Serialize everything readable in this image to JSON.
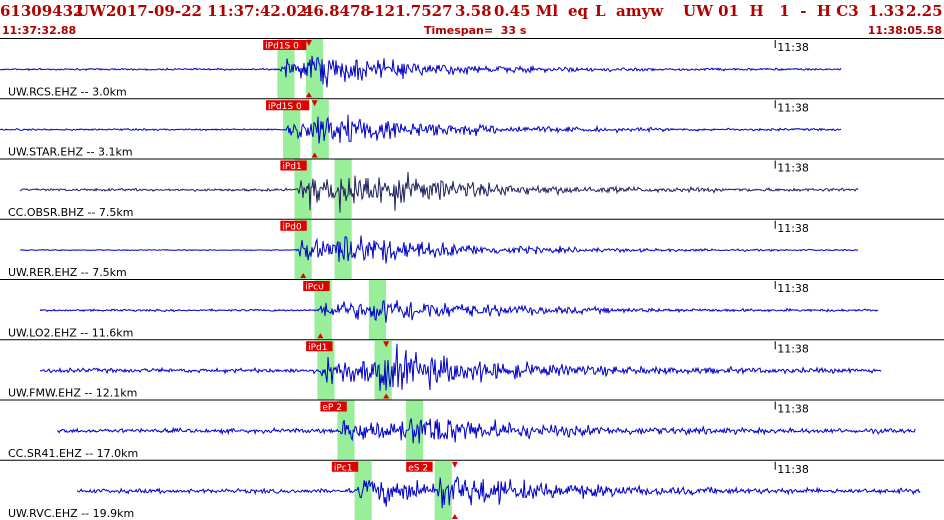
{
  "header": {
    "event_id": "61309432",
    "network": "UW",
    "origin_time": "2017-09-22 11:37:42.02",
    "latitude": "46.8478",
    "longitude": "-121.7527",
    "depth": "3.58",
    "magnitude": "0.45 Ml",
    "event_type": "eq",
    "event_code": "L",
    "author": "amyw",
    "quality_fields": "UW 01  H   1  -  H C3",
    "rms": "1.33",
    "gap": "2.25",
    "start_time": "11:37:32.88",
    "timespan": "Timespan=  33 s",
    "end_time": "11:38:05.58"
  },
  "colors": {
    "header_text": "#b00000",
    "trace_primary": "#0000cc",
    "trace_dark": "#202060",
    "pick_flag": "#e00000",
    "pick_window": "#99ee99",
    "separator": "#000000"
  },
  "chart_data": {
    "type": "line",
    "title": "",
    "xlabel": "",
    "ylabel": "",
    "x_range_s": [
      0,
      33
    ],
    "time_tick": {
      "label": "11:38",
      "t": 27.1
    },
    "traces": [
      {
        "label": "UW.RCS.EHZ -- 3.0km",
        "start": 0.0,
        "end": 29.4,
        "p": 9.8,
        "s": 10.8,
        "picks": [
          {
            "t": 9.2,
            "text": "iPd1S 0"
          }
        ],
        "pick_marker_t": 10.8,
        "amp": 12,
        "noise": 1.0,
        "color": "#0000cc"
      },
      {
        "label": "UW.STAR.EHZ -- 3.1km",
        "start": 0.0,
        "end": 29.4,
        "p": 10.0,
        "s": 11.0,
        "picks": [
          {
            "t": 9.3,
            "text": "iPd1S 0"
          }
        ],
        "pick_marker_t": 11.0,
        "amp": 14,
        "noise": 1.0,
        "color": "#0000cc"
      },
      {
        "label": "CC.OBSR.BHZ -- 7.5km",
        "start": 0.7,
        "end": 30.0,
        "p": 10.4,
        "s": 11.8,
        "picks": [
          {
            "t": 9.8,
            "text": "iPd1"
          }
        ],
        "pick_marker_t": null,
        "amp": 18,
        "noise": 1.5,
        "color": "#202060"
      },
      {
        "label": "UW.RER.EHZ -- 7.5km",
        "start": 0.7,
        "end": 30.0,
        "p": 10.4,
        "s": 11.8,
        "picks": [
          {
            "t": 9.8,
            "text": "iPd0"
          }
        ],
        "pick_marker_t": 10.6,
        "amp": 14,
        "noise": 0.6,
        "color": "#0000cc"
      },
      {
        "label": "UW.LO2.EHZ -- 11.6km",
        "start": 1.4,
        "end": 30.7,
        "p": 11.1,
        "s": 13.0,
        "picks": [
          {
            "t": 10.6,
            "text": "iPc0"
          }
        ],
        "pick_marker_t": 11.2,
        "amp": 12,
        "noise": 1.2,
        "color": "#0000cc"
      },
      {
        "label": "UW.FMW.EHZ -- 12.1km",
        "start": 1.4,
        "end": 30.8,
        "p": 11.2,
        "s": 13.2,
        "picks": [
          {
            "t": 10.7,
            "text": "iPd1"
          }
        ],
        "pick_marker_t": 13.5,
        "amp": 18,
        "noise": 2.5,
        "color": "#0000cc"
      },
      {
        "label": "CC.SR41.EHZ -- 17.0km",
        "start": 2.0,
        "end": 32.0,
        "p": 11.9,
        "s": 14.3,
        "picks": [
          {
            "t": 11.2,
            "text": "eP 2"
          }
        ],
        "pick_marker_t": null,
        "amp": 14,
        "noise": 2.5,
        "color": "#0000cc"
      },
      {
        "label": "UW.RVC.EHZ -- 19.9km",
        "start": 2.7,
        "end": 32.2,
        "p": 12.5,
        "s": 15.3,
        "picks": [
          {
            "t": 11.6,
            "text": "iPc1"
          },
          {
            "t": 14.2,
            "text": "eS 2"
          }
        ],
        "pick_marker_t": 15.9,
        "amp": 16,
        "noise": 2.5,
        "color": "#0000cc"
      }
    ]
  }
}
